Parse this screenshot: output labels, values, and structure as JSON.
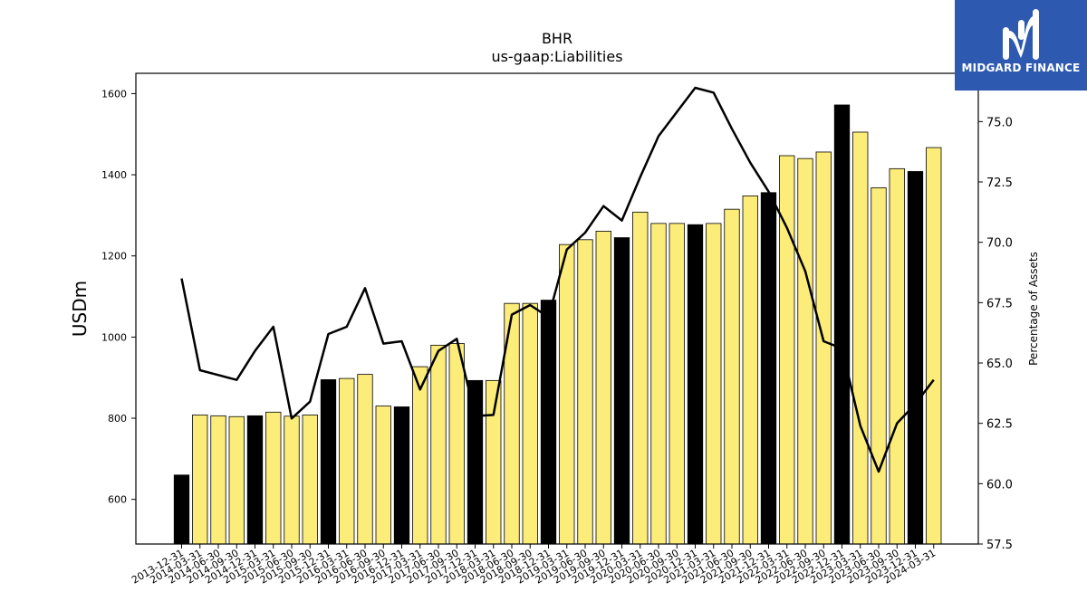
{
  "brand": {
    "name": "MIDGARD FINANCE",
    "bg_color": "#2d5ab0"
  },
  "chart_data": {
    "type": "bar",
    "title": "BHR",
    "subtitle": "us-gaap:Liabilities",
    "ylabel": "USDm",
    "y2label": "Percentage of Assets",
    "ylim": [
      490,
      1650
    ],
    "y2lim": [
      57.5,
      77.0
    ],
    "yticks": [
      600,
      800,
      1000,
      1200,
      1400,
      1600
    ],
    "y2ticks": [
      "57.5",
      "60.0",
      "62.5",
      "65.0",
      "67.5",
      "70.0",
      "72.5",
      "75.0"
    ],
    "categories": [
      "2013-12-31",
      "2014-03-31",
      "2014-06-30",
      "2014-09-30",
      "2014-12-31",
      "2015-03-31",
      "2015-06-30",
      "2015-09-30",
      "2015-12-31",
      "2016-03-31",
      "2016-06-30",
      "2016-09-30",
      "2016-12-31",
      "2017-03-31",
      "2017-06-30",
      "2017-09-30",
      "2017-12-31",
      "2018-03-31",
      "2018-06-30",
      "2018-09-30",
      "2018-12-31",
      "2019-03-31",
      "2019-06-30",
      "2019-09-30",
      "2019-12-31",
      "2020-03-31",
      "2020-06-30",
      "2020-09-30",
      "2020-12-31",
      "2021-03-31",
      "2021-06-30",
      "2021-09-30",
      "2021-12-31",
      "2022-03-31",
      "2022-06-30",
      "2022-09-30",
      "2022-12-31",
      "2023-03-31",
      "2023-06-30",
      "2023-09-30",
      "2023-12-31",
      "2024-03-31"
    ],
    "series": [
      {
        "kind": "bar",
        "values": [
          660,
          808,
          806,
          804,
          806,
          815,
          805,
          808,
          895,
          898,
          908,
          830,
          828,
          927,
          980,
          984,
          893,
          893,
          1083,
          1083,
          1091,
          1228,
          1240,
          1261,
          1245,
          1308,
          1280,
          1280,
          1277,
          1280,
          1315,
          1348,
          1356,
          1447,
          1440,
          1456,
          1572,
          1505,
          1368,
          1415,
          1408,
          1467
        ],
        "colors": [
          "#000000",
          "#fcec7a",
          "#fcec7a",
          "#fcec7a",
          "#000000",
          "#fcec7a",
          "#fcec7a",
          "#fcec7a",
          "#000000",
          "#fcec7a",
          "#fcec7a",
          "#fcec7a",
          "#000000",
          "#fcec7a",
          "#fcec7a",
          "#fcec7a",
          "#000000",
          "#fcec7a",
          "#fcec7a",
          "#fcec7a",
          "#000000",
          "#fcec7a",
          "#fcec7a",
          "#fcec7a",
          "#000000",
          "#fcec7a",
          "#fcec7a",
          "#fcec7a",
          "#000000",
          "#fcec7a",
          "#fcec7a",
          "#fcec7a",
          "#000000",
          "#fcec7a",
          "#fcec7a",
          "#fcec7a",
          "#000000",
          "#fcec7a",
          "#fcec7a",
          "#fcec7a",
          "#000000",
          "#fcec7a"
        ]
      },
      {
        "kind": "line",
        "axis": "right",
        "color": "#000000",
        "values": [
          68.5,
          64.7,
          64.5,
          64.3,
          65.5,
          66.5,
          62.7,
          63.4,
          66.2,
          66.5,
          68.1,
          65.8,
          65.9,
          63.9,
          65.5,
          66.0,
          62.8,
          62.85,
          67.0,
          67.4,
          66.9,
          69.7,
          70.4,
          71.5,
          70.9,
          72.7,
          74.4,
          75.4,
          76.4,
          76.2,
          74.7,
          73.3,
          72.1,
          70.6,
          68.8,
          65.9,
          65.6,
          62.4,
          60.5,
          62.5,
          63.3,
          64.3
        ]
      }
    ],
    "grid": false,
    "legend": "none"
  }
}
